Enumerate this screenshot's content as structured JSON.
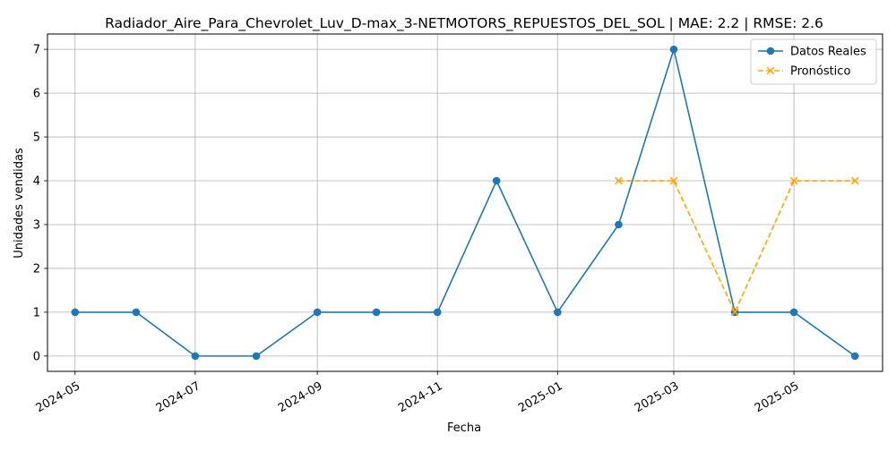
{
  "chart_data": {
    "type": "line",
    "title": "Radiador_Aire_Para_Chevrolet_Luv_D-max_3-NETMOTORS_REPUESTOS_DEL_SOL | MAE: 2.2 | RMSE: 2.6",
    "xlabel": "Fecha",
    "ylabel": "Unidades vendidas",
    "x_ticks": [
      "2024-05",
      "2024-07",
      "2024-09",
      "2024-11",
      "2025-01",
      "2025-03",
      "2025-05"
    ],
    "y_ticks": [
      0,
      1,
      2,
      3,
      4,
      5,
      6,
      7
    ],
    "xlim": [
      "2024-04-17",
      "2025-06-15"
    ],
    "ylim": [
      -0.35,
      7.35
    ],
    "grid": true,
    "legend_position": "upper right",
    "series": [
      {
        "name": "Datos Reales",
        "color": "#1f77b4",
        "marker": "circle",
        "linestyle": "solid",
        "points": [
          {
            "x": "2024-05-01",
            "y": 1
          },
          {
            "x": "2024-06-01",
            "y": 1
          },
          {
            "x": "2024-07-01",
            "y": 0
          },
          {
            "x": "2024-08-01",
            "y": 0
          },
          {
            "x": "2024-09-01",
            "y": 1
          },
          {
            "x": "2024-10-01",
            "y": 1
          },
          {
            "x": "2024-11-01",
            "y": 1
          },
          {
            "x": "2024-12-01",
            "y": 4
          },
          {
            "x": "2025-01-01",
            "y": 1
          },
          {
            "x": "2025-02-01",
            "y": 3
          },
          {
            "x": "2025-03-01",
            "y": 7
          },
          {
            "x": "2025-04-01",
            "y": 1
          },
          {
            "x": "2025-05-01",
            "y": 1
          },
          {
            "x": "2025-06-01",
            "y": 0
          }
        ]
      },
      {
        "name": "Pronóstico",
        "color": "#ffa500",
        "marker": "x",
        "linestyle": "dashed",
        "points": [
          {
            "x": "2025-02-01",
            "y": 4
          },
          {
            "x": "2025-03-01",
            "y": 4
          },
          {
            "x": "2025-04-01",
            "y": 1
          },
          {
            "x": "2025-05-01",
            "y": 4
          },
          {
            "x": "2025-06-01",
            "y": 4
          }
        ]
      }
    ]
  }
}
